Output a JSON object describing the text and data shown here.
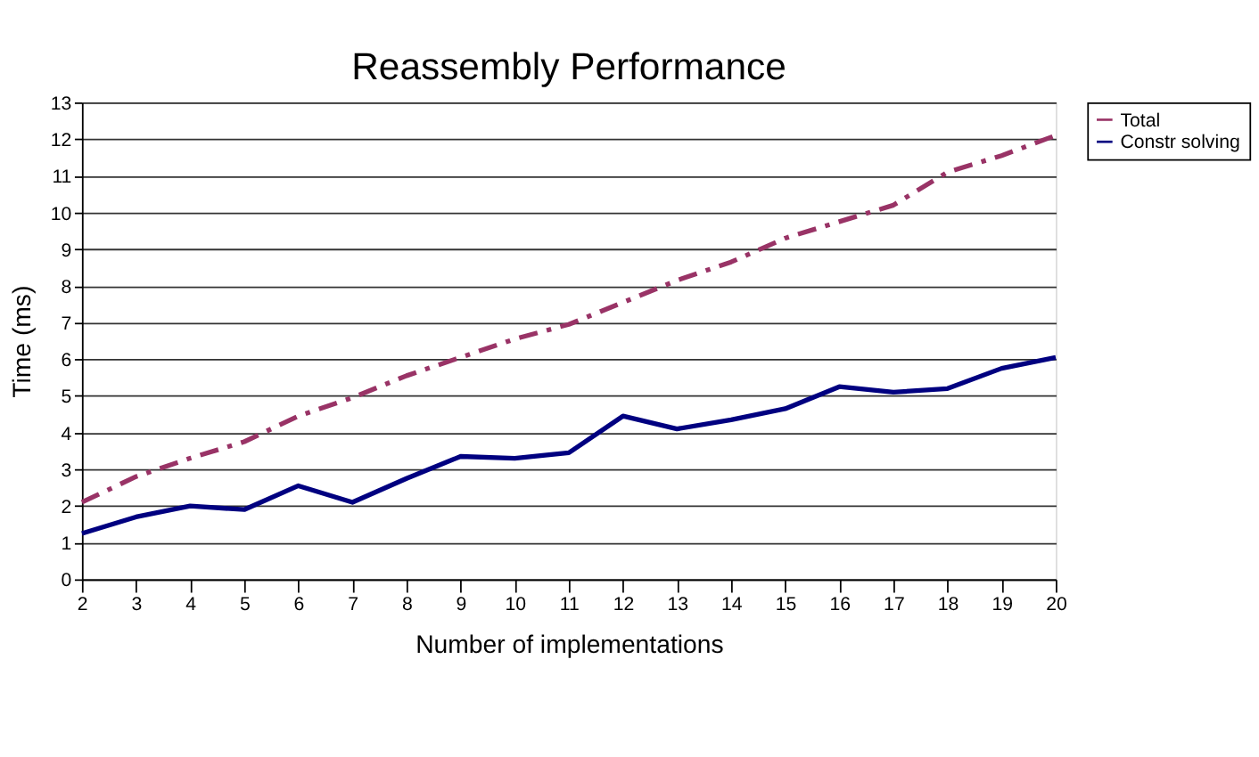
{
  "chart_data": {
    "type": "line",
    "title": "Reassembly Performance",
    "xlabel": "Number of implementations",
    "ylabel": "Time (ms)",
    "x": [
      2,
      3,
      4,
      5,
      6,
      7,
      8,
      9,
      10,
      11,
      12,
      13,
      14,
      15,
      16,
      17,
      18,
      19,
      20
    ],
    "xlim": [
      2,
      20
    ],
    "xticks": [
      2,
      3,
      4,
      5,
      6,
      7,
      8,
      9,
      10,
      11,
      12,
      13,
      14,
      15,
      16,
      17,
      18,
      19,
      20
    ],
    "ylim": [
      0,
      13
    ],
    "yticks": [
      0,
      1,
      2,
      3,
      4,
      5,
      6,
      7,
      8,
      9,
      10,
      11,
      12,
      13
    ],
    "grid": "y",
    "legend": "right",
    "marker": "none",
    "series": [
      {
        "name": "Total",
        "color": "#993366",
        "line_style": "dashed",
        "values": [
          2.1,
          2.8,
          3.3,
          3.75,
          4.45,
          4.95,
          5.55,
          6.05,
          6.55,
          6.95,
          7.55,
          8.15,
          8.65,
          9.3,
          9.75,
          10.2,
          11.1,
          11.55,
          12.1
        ]
      },
      {
        "name": "Constr solving",
        "color": "#000080",
        "line_style": "solid",
        "values": [
          1.25,
          1.7,
          2.0,
          1.9,
          2.55,
          2.1,
          2.75,
          3.35,
          3.3,
          3.45,
          4.45,
          4.1,
          4.35,
          4.65,
          5.25,
          5.1,
          5.2,
          5.75,
          6.05
        ]
      }
    ]
  }
}
